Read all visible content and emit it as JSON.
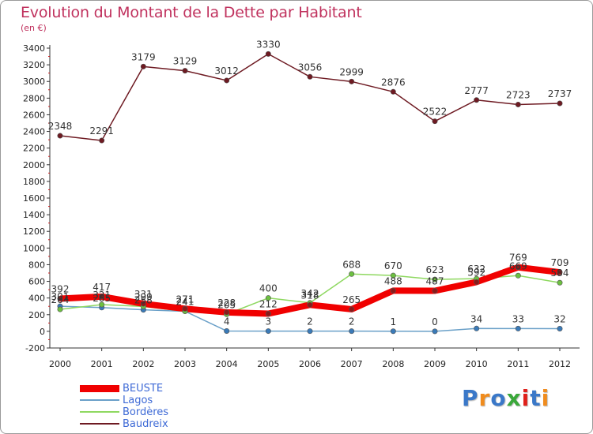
{
  "title": "Evolution du Montant de la Dette par Habitant",
  "subtitle": "(en €)",
  "logo": {
    "text": "Proxiti",
    "letters": [
      "P",
      "r",
      "o",
      "x",
      "i",
      "t",
      "i"
    ],
    "colors": [
      "#3a78c8",
      "#f08c1e",
      "#3a78c8",
      "#3aa83a",
      "#e0201a",
      "#3a78c8",
      "#f08c1e"
    ]
  },
  "chart_data": {
    "type": "line",
    "title": "Evolution du Montant de la Dette par Habitant",
    "ylabel": "(en €)",
    "xlabel": "",
    "x": [
      "2000",
      "2001",
      "2002",
      "2003",
      "2004",
      "2005",
      "2006",
      "2007",
      "2008",
      "2009",
      "2010",
      "2011",
      "2012"
    ],
    "ylim": [
      -200,
      3400
    ],
    "yticks": [
      -200,
      0,
      200,
      400,
      600,
      800,
      1000,
      1200,
      1400,
      1600,
      1800,
      2000,
      2200,
      2400,
      2600,
      2800,
      3000,
      3200,
      3400
    ],
    "grid": false,
    "legend": "bottom-left",
    "series": [
      {
        "name": "BEUSTE",
        "color": "#f00000",
        "values": [
          392,
          417,
          331,
          271,
          228,
          212,
          318,
          265,
          488,
          487,
          592,
          769,
          709
        ],
        "labels": [
          "392",
          "417",
          "331",
          "271",
          "228",
          "212",
          "318",
          "265",
          "488",
          "487",
          "592",
          "769",
          "709"
        ]
      },
      {
        "name": "Lagos",
        "color": "#6aa0c8",
        "values": [
          301,
          285,
          258,
          241,
          4,
          3,
          2,
          2,
          1,
          0,
          34,
          33,
          32
        ],
        "labels": [
          "301",
          "285",
          "258",
          "241",
          "4",
          "3",
          "2",
          "2",
          "1",
          "0",
          "34",
          "33",
          "32"
        ]
      },
      {
        "name": "Bordères",
        "color": "#8ed860",
        "values": [
          264,
          321,
          299,
          241,
          205,
          400,
          342,
          688,
          670,
          623,
          632,
          669,
          584
        ],
        "labels": [
          "264",
          "321",
          "299",
          "241",
          "205",
          "400",
          "342",
          "688",
          "670",
          "623",
          "632",
          "669",
          "584"
        ]
      },
      {
        "name": "Baudreix",
        "color": "#6e1a22",
        "values": [
          2348,
          2291,
          3179,
          3129,
          3012,
          3330,
          3056,
          2999,
          2876,
          2522,
          2777,
          2723,
          2737
        ],
        "labels": [
          "2348",
          "2291",
          "3179",
          "3129",
          "3012",
          "3330",
          "3056",
          "2999",
          "2876",
          "2522",
          "2777",
          "2723",
          "2737"
        ]
      }
    ]
  }
}
